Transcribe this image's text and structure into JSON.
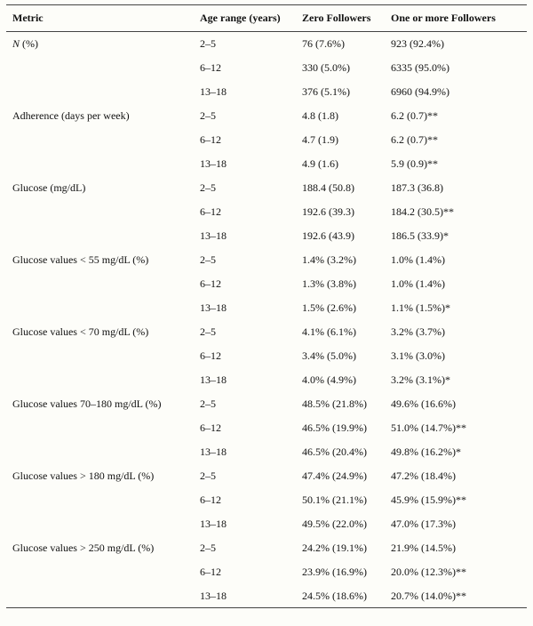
{
  "table": {
    "headers": [
      "Metric",
      "Age range (years)",
      "Zero Followers",
      "One or more Followers"
    ],
    "groups": [
      {
        "metric": "(%)",
        "metric_italic_prefix": "N",
        "rows": [
          {
            "age": "2–5",
            "zero": "76 (7.6%)",
            "one": "923 (92.4%)"
          },
          {
            "age": "6–12",
            "zero": "330 (5.0%)",
            "one": "6335 (95.0%)"
          },
          {
            "age": "13–18",
            "zero": "376 (5.1%)",
            "one": "6960 (94.9%)"
          }
        ]
      },
      {
        "metric": "Adherence (days per week)",
        "rows": [
          {
            "age": "2–5",
            "zero": "4.8 (1.8)",
            "one": "6.2 (0.7)**"
          },
          {
            "age": "6–12",
            "zero": "4.7 (1.9)",
            "one": "6.2 (0.7)**"
          },
          {
            "age": "13–18",
            "zero": "4.9 (1.6)",
            "one": "5.9 (0.9)**"
          }
        ]
      },
      {
        "metric": "Glucose (mg/dL)",
        "rows": [
          {
            "age": "2–5",
            "zero": "188.4 (50.8)",
            "one": "187.3 (36.8)"
          },
          {
            "age": "6–12",
            "zero": "192.6 (39.3)",
            "one": "184.2 (30.5)**"
          },
          {
            "age": "13–18",
            "zero": "192.6 (43.9)",
            "one": "186.5 (33.9)*"
          }
        ]
      },
      {
        "metric": "Glucose values < 55 mg/dL (%)",
        "rows": [
          {
            "age": "2–5",
            "zero": "1.4% (3.2%)",
            "one": "1.0% (1.4%)"
          },
          {
            "age": "6–12",
            "zero": "1.3% (3.8%)",
            "one": "1.0% (1.4%)"
          },
          {
            "age": "13–18",
            "zero": "1.5% (2.6%)",
            "one": "1.1% (1.5%)*"
          }
        ]
      },
      {
        "metric": "Glucose values < 70 mg/dL (%)",
        "rows": [
          {
            "age": "2–5",
            "zero": "4.1% (6.1%)",
            "one": "3.2% (3.7%)"
          },
          {
            "age": "6–12",
            "zero": "3.4% (5.0%)",
            "one": "3.1% (3.0%)"
          },
          {
            "age": "13–18",
            "zero": "4.0% (4.9%)",
            "one": "3.2% (3.1%)*"
          }
        ]
      },
      {
        "metric": "Glucose values 70–180 mg/dL (%)",
        "rows": [
          {
            "age": "2–5",
            "zero": "48.5% (21.8%)",
            "one": "49.6% (16.6%)"
          },
          {
            "age": "6–12",
            "zero": "46.5% (19.9%)",
            "one": "51.0% (14.7%)**"
          },
          {
            "age": "13–18",
            "zero": "46.5% (20.4%)",
            "one": "49.8% (16.2%)*"
          }
        ]
      },
      {
        "metric": "Glucose values > 180 mg/dL (%)",
        "rows": [
          {
            "age": "2–5",
            "zero": "47.4% (24.9%)",
            "one": "47.2% (18.4%)"
          },
          {
            "age": "6–12",
            "zero": "50.1% (21.1%)",
            "one": "45.9% (15.9%)**"
          },
          {
            "age": "13–18",
            "zero": "49.5% (22.0%)",
            "one": "47.0% (17.3%)"
          }
        ]
      },
      {
        "metric": "Glucose values > 250 mg/dL (%)",
        "rows": [
          {
            "age": "2–5",
            "zero": "24.2% (19.1%)",
            "one": "21.9% (14.5%)"
          },
          {
            "age": "6–12",
            "zero": "23.9% (16.9%)",
            "one": "20.0% (12.3%)**"
          },
          {
            "age": "13–18",
            "zero": "24.5% (18.6%)",
            "one": "20.7% (14.0%)**"
          }
        ]
      }
    ]
  }
}
